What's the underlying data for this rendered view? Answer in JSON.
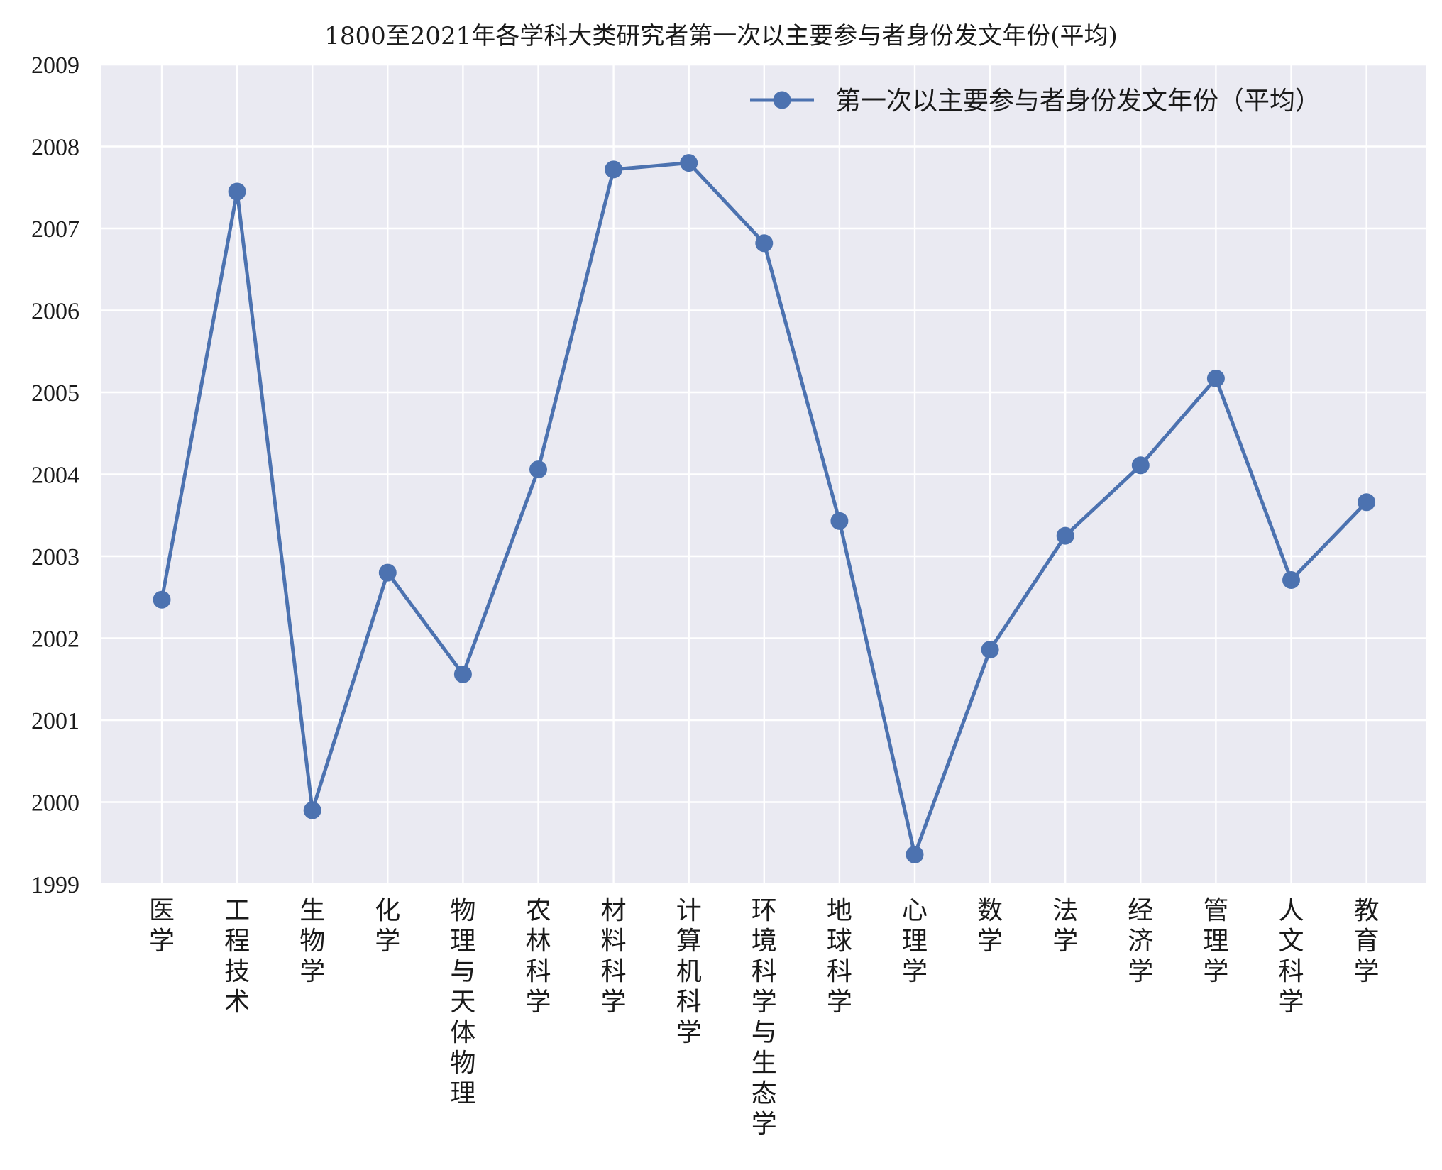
{
  "chart_data": {
    "type": "line",
    "title": "1800至2021年各学科大类研究者第一次以主要参与者身份发文年份(平均)",
    "xlabel": "",
    "ylabel": "",
    "categories": [
      "医学",
      "工程技术",
      "生物学",
      "化学",
      "物理与天体物理",
      "农林科学",
      "材料科学",
      "计算机科学",
      "环境科学与生态学",
      "地球科学",
      "心理学",
      "数学",
      "法学",
      "经济学",
      "管理学",
      "人文科学",
      "教育学"
    ],
    "series": [
      {
        "name": "第一次以主要参与者身份发文年份（平均）",
        "color": "#4c72b0",
        "marker": "circle",
        "values": [
          2002.47,
          2007.45,
          1999.9,
          2002.8,
          2001.56,
          2004.06,
          2007.72,
          2007.8,
          2006.82,
          2003.43,
          1999.36,
          2001.86,
          2003.25,
          2004.11,
          2005.17,
          2002.71,
          2003.66
        ]
      }
    ],
    "ylim": [
      1999,
      2009
    ],
    "yticks": [
      "1999",
      "2000",
      "2001",
      "2002",
      "2003",
      "2004",
      "2005",
      "2006",
      "2007",
      "2008",
      "2009"
    ],
    "grid": true,
    "legend_position": "top-right",
    "background": "#eaeaf2",
    "gridline_color": "#ffffff"
  }
}
